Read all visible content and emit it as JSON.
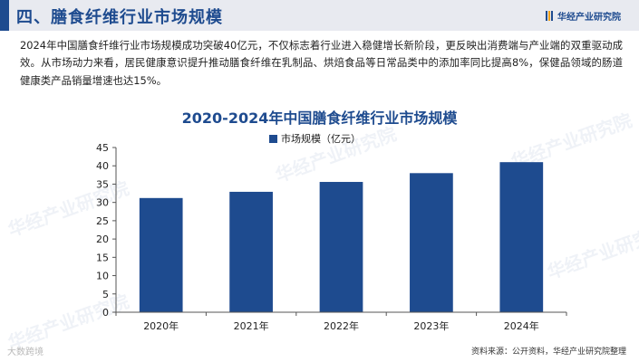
{
  "header": {
    "title": "四、膳食纤维行业市场规模",
    "brand": "华经产业研究院"
  },
  "body_text": "2024年中国膳食纤维行业市场规模成功突破40亿元，不仅标志着行业进入稳健增长新阶段，更反映出消费端与产业端的双重驱动成效。从市场动力来看，居民健康意识提升推动膳食纤维在乳制品、烘焙食品等日常品类中的添加率同比提高8%，保健品领域的肠道健康类产品销量增速也达15%。",
  "chart_data": {
    "type": "bar",
    "title": "2020-2024年中国膳食纤维行业市场规模",
    "categories": [
      "2020年",
      "2021年",
      "2022年",
      "2023年",
      "2024年"
    ],
    "series": [
      {
        "name": "市场规模（亿元）",
        "values": [
          31.2,
          32.9,
          35.6,
          38.0,
          41.0
        ]
      }
    ],
    "ylim": [
      0,
      45
    ],
    "yticks": [
      0,
      5,
      10,
      15,
      20,
      25,
      30,
      35,
      40,
      45
    ],
    "grid": false,
    "legend": "top-center",
    "bar_color": "#1e4b8f"
  },
  "watermark": "华经产业研究院",
  "footer": {
    "source": "资料来源：公开资料，华经产业研究院整理",
    "logo": "大数跨境"
  }
}
